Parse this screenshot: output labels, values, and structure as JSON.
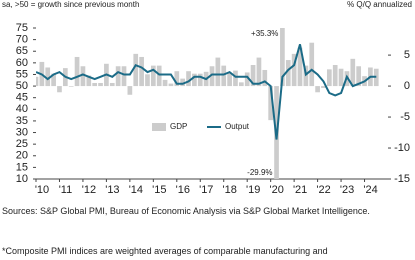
{
  "chart_data": {
    "type": "combo",
    "subtitle": "sa, >50 = growth since previous month",
    "y2_label": "% Q/Q annualized",
    "x": [
      2010,
      2010.25,
      2010.5,
      2010.75,
      2011,
      2011.25,
      2011.5,
      2011.75,
      2012,
      2012.25,
      2012.5,
      2012.75,
      2013,
      2013.25,
      2013.5,
      2013.75,
      2014,
      2014.25,
      2014.5,
      2014.75,
      2015,
      2015.25,
      2015.5,
      2015.75,
      2016,
      2016.25,
      2016.5,
      2016.75,
      2017,
      2017.25,
      2017.5,
      2017.75,
      2018,
      2018.25,
      2018.5,
      2018.75,
      2019,
      2019.25,
      2019.5,
      2019.75,
      2020,
      2020.25,
      2020.5,
      2020.75,
      2021,
      2021.25,
      2021.5,
      2021.75,
      2022,
      2022.25,
      2022.5,
      2022.75,
      2023,
      2023.25,
      2023.5,
      2023.75,
      2024,
      2024.25,
      2024.5
    ],
    "xlim": [
      2010,
      2025
    ],
    "xticks": [
      {
        "value": 2010,
        "label": "'10"
      },
      {
        "value": 2011,
        "label": "'11"
      },
      {
        "value": 2012,
        "label": "'12"
      },
      {
        "value": 2013,
        "label": "'13"
      },
      {
        "value": 2014,
        "label": "'14"
      },
      {
        "value": 2015,
        "label": "'15"
      },
      {
        "value": 2016,
        "label": "'16"
      },
      {
        "value": 2017,
        "label": "'17"
      },
      {
        "value": 2018,
        "label": "'18"
      },
      {
        "value": 2019,
        "label": "'19"
      },
      {
        "value": 2020,
        "label": "'20"
      },
      {
        "value": 2021,
        "label": "'21"
      },
      {
        "value": 2022,
        "label": "'22"
      },
      {
        "value": 2023,
        "label": "'23"
      },
      {
        "value": 2024,
        "label": "'24"
      }
    ],
    "ylim": [
      10,
      75
    ],
    "yticks": [
      10,
      15,
      20,
      25,
      30,
      35,
      40,
      45,
      50,
      55,
      60,
      65,
      70,
      75
    ],
    "y2lim": [
      -15,
      9.375
    ],
    "y2ticks": [
      -15,
      -10,
      -5,
      0,
      5
    ],
    "grid": false,
    "legend": "center",
    "series": [
      {
        "name": "GDP",
        "type": "bar",
        "axis": "y2",
        "color": "#cccccc",
        "values": [
          1.5,
          3.9,
          3.0,
          2.0,
          -1.0,
          2.9,
          -0.1,
          4.7,
          3.2,
          1.7,
          0.5,
          0.5,
          3.6,
          0.5,
          3.2,
          3.2,
          -1.4,
          5.2,
          4.7,
          1.9,
          3.3,
          3.3,
          1.0,
          0.4,
          2.4,
          1.2,
          2.4,
          2.0,
          2.0,
          2.3,
          3.2,
          4.6,
          3.3,
          2.1,
          2.5,
          0.6,
          2.2,
          3.4,
          4.6,
          2.6,
          -5.5,
          -29.9,
          35.3,
          4.2,
          5.2,
          6.2,
          3.3,
          7.0,
          -1.0,
          -0.3,
          2.7,
          3.4,
          2.8,
          2.4,
          4.4,
          3.2,
          1.6,
          3.0,
          2.8
        ],
        "value_labels": [
          null,
          null,
          null,
          null,
          null,
          null,
          null,
          null,
          null,
          null,
          null,
          null,
          null,
          null,
          null,
          null,
          null,
          null,
          null,
          null,
          null,
          null,
          null,
          null,
          null,
          null,
          null,
          null,
          null,
          null,
          null,
          null,
          null,
          null,
          null,
          null,
          null,
          null,
          null,
          null,
          null,
          "-29.9%",
          "+35.3%",
          null,
          null,
          null,
          null,
          null,
          null,
          null,
          null,
          null,
          null,
          null,
          null,
          null,
          null,
          null,
          null
        ]
      },
      {
        "name": "Output",
        "type": "line",
        "color": "#1b6b87",
        "values": [
          56,
          55,
          53,
          55,
          56,
          54,
          53,
          54,
          55,
          54,
          53,
          54,
          55,
          54,
          56,
          55,
          55,
          59,
          58,
          56,
          57,
          55,
          55,
          55,
          51,
          51,
          52,
          54,
          54,
          53,
          55,
          55,
          55,
          56,
          54,
          54,
          54,
          51,
          51,
          52,
          50,
          27,
          54,
          57,
          59,
          68,
          55,
          57,
          55,
          52,
          47,
          46,
          47,
          54,
          50,
          51,
          52,
          54,
          54
        ]
      }
    ],
    "sources": "Sources: S&P Global PMI, Bureau of Economic Analysis via S&P Global Market Intelligence.",
    "footnote": "*Composite PMI indices are weighted averages of comparable manufacturing and"
  }
}
